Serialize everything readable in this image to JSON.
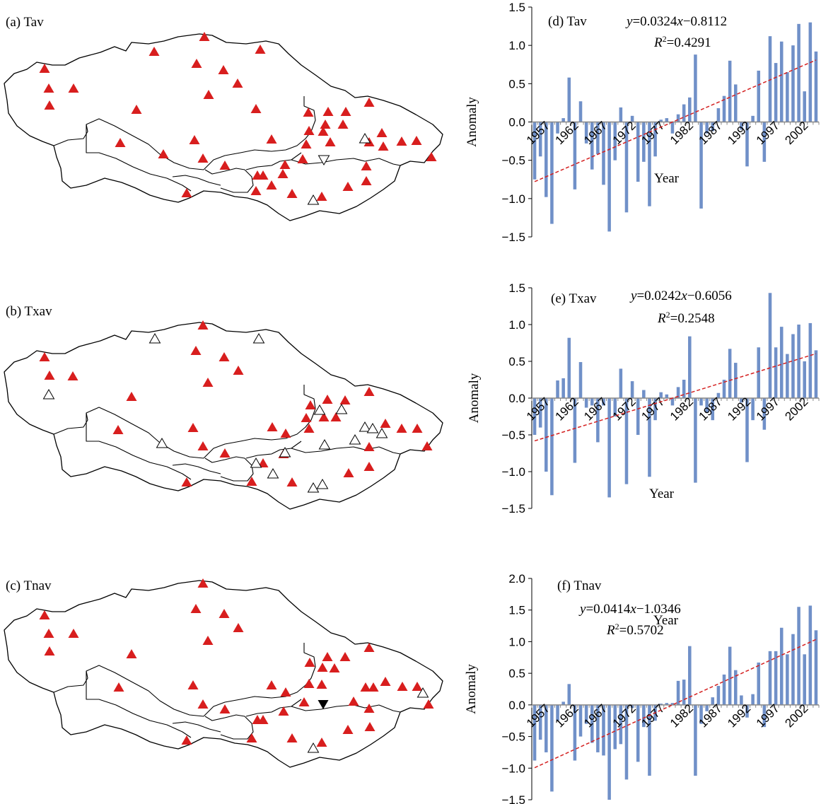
{
  "maps": [
    {
      "label": "(a) Tav",
      "red": [
        [
          63,
          97
        ],
        [
          69,
          125
        ],
        [
          104,
          125
        ],
        [
          70,
          149
        ],
        [
          218,
          73
        ],
        [
          289,
          52
        ],
        [
          368,
          70
        ],
        [
          278,
          90
        ],
        [
          316,
          99
        ],
        [
          295,
          134
        ],
        [
          336,
          118
        ],
        [
          362,
          154
        ],
        [
          193,
          155
        ],
        [
          170,
          202
        ],
        [
          275,
          198
        ],
        [
          231,
          218
        ],
        [
          287,
          224
        ],
        [
          318,
          234
        ],
        [
          384,
          197
        ],
        [
          264,
          273
        ],
        [
          436,
          159
        ],
        [
          464,
          158
        ],
        [
          489,
          158
        ],
        [
          522,
          145
        ],
        [
          460,
          176
        ],
        [
          485,
          176
        ],
        [
          437,
          185
        ],
        [
          457,
          186
        ],
        [
          433,
          204
        ],
        [
          467,
          201
        ],
        [
          428,
          225
        ],
        [
          540,
          188
        ],
        [
          522,
          201
        ],
        [
          568,
          200
        ],
        [
          589,
          199
        ],
        [
          542,
          207
        ],
        [
          610,
          222
        ],
        [
          364,
          248
        ],
        [
          372,
          248
        ],
        [
          403,
          233
        ],
        [
          400,
          246
        ],
        [
          518,
          235
        ],
        [
          518,
          256
        ],
        [
          492,
          264
        ],
        [
          362,
          270
        ],
        [
          455,
          278
        ],
        [
          384,
          262
        ],
        [
          413,
          274
        ]
      ],
      "up_open": [
        [
          516,
          196
        ],
        [
          443,
          283
        ]
      ],
      "down_open": [
        [
          458,
          226
        ]
      ],
      "down_filled": []
    },
    {
      "label": "(b) Txav",
      "red": [
        [
          63,
          505
        ],
        [
          70,
          531
        ],
        [
          103,
          532
        ],
        [
          287,
          460
        ],
        [
          277,
          496
        ],
        [
          317,
          505
        ],
        [
          294,
          541
        ],
        [
          337,
          524
        ],
        [
          186,
          561
        ],
        [
          167,
          608
        ],
        [
          273,
          605
        ],
        [
          287,
          631
        ],
        [
          318,
          641
        ],
        [
          385,
          604
        ],
        [
          264,
          682
        ],
        [
          463,
          565
        ],
        [
          439,
          573
        ],
        [
          488,
          566
        ],
        [
          522,
          554
        ],
        [
          433,
          591
        ],
        [
          437,
          606
        ],
        [
          458,
          590
        ],
        [
          475,
          590
        ],
        [
          404,
          613
        ],
        [
          545,
          599
        ],
        [
          568,
          606
        ],
        [
          590,
          606
        ],
        [
          604,
          631
        ],
        [
          356,
          681
        ],
        [
          372,
          655
        ],
        [
          522,
          632
        ],
        [
          522,
          660
        ],
        [
          493,
          669
        ],
        [
          401,
          642
        ],
        [
          413,
          682
        ]
      ],
      "up_open": [
        [
          219,
          479
        ],
        [
          366,
          479
        ],
        [
          69,
          558
        ],
        [
          229,
          627
        ],
        [
          452,
          580
        ],
        [
          483,
          579
        ],
        [
          516,
          604
        ],
        [
          527,
          606
        ],
        [
          540,
          613
        ],
        [
          459,
          629
        ],
        [
          502,
          622
        ],
        [
          403,
          640
        ],
        [
          362,
          655
        ],
        [
          386,
          670
        ],
        [
          443,
          690
        ],
        [
          456,
          685
        ]
      ],
      "down_open": [],
      "down_filled": []
    },
    {
      "label": "(c) Tnav",
      "red": [
        [
          63,
          870
        ],
        [
          69,
          896
        ],
        [
          104,
          896
        ],
        [
          70,
          921
        ],
        [
          287,
          825
        ],
        [
          277,
          861
        ],
        [
          317,
          868
        ],
        [
          294,
          906
        ],
        [
          337,
          888
        ],
        [
          186,
          925
        ],
        [
          168,
          972
        ],
        [
          273,
          969
        ],
        [
          287,
          996
        ],
        [
          318,
          1003
        ],
        [
          384,
          969
        ],
        [
          264,
          1047
        ],
        [
          463,
          929
        ],
        [
          438,
          937
        ],
        [
          488,
          929
        ],
        [
          522,
          916
        ],
        [
          456,
          944
        ],
        [
          473,
          945
        ],
        [
          437,
          967
        ],
        [
          455,
          968
        ],
        [
          517,
          972
        ],
        [
          528,
          972
        ],
        [
          545,
          964
        ],
        [
          569,
          971
        ],
        [
          590,
          971
        ],
        [
          606,
          996
        ],
        [
          404,
          979
        ],
        [
          401,
          1006
        ],
        [
          430,
          993
        ],
        [
          364,
          1018
        ],
        [
          372,
          1018
        ],
        [
          500,
          992
        ],
        [
          522,
          1002
        ],
        [
          523,
          1028
        ],
        [
          492,
          1032
        ],
        [
          413,
          1044
        ],
        [
          455,
          1050
        ],
        [
          356,
          1044
        ]
      ],
      "up_open": [
        [
          598,
          980
        ],
        [
          443,
          1058
        ]
      ],
      "down_open": [],
      "down_filled": [
        [
          457,
          996
        ]
      ]
    }
  ],
  "chart_data": [
    {
      "type": "bar",
      "label": "(d) Tav",
      "equation": "y=0.0324x−0.8112",
      "r2": "R2=0.4291",
      "xlabel": "Year",
      "ylabel": "Anomaly",
      "ylim": [
        -1.5,
        1.5
      ],
      "yticks": [
        "−1.5",
        "−1.0",
        "−0.5",
        "0.0",
        "0.5",
        "1.0",
        "1.5"
      ],
      "xticks": [
        "1957",
        "1962",
        "1967",
        "1972",
        "1977",
        "1982",
        "1987",
        "1992",
        "1997",
        "2002"
      ],
      "categories": [
        1955,
        1956,
        1957,
        1958,
        1959,
        1960,
        1961,
        1962,
        1963,
        1964,
        1965,
        1966,
        1967,
        1968,
        1969,
        1970,
        1971,
        1972,
        1973,
        1974,
        1975,
        1976,
        1977,
        1978,
        1979,
        1980,
        1981,
        1982,
        1983,
        1984,
        1985,
        1986,
        1987,
        1988,
        1989,
        1990,
        1991,
        1992,
        1993,
        1994,
        1995,
        1996,
        1997,
        1998,
        1999,
        2000,
        2001,
        2002,
        2003,
        2004
      ],
      "values": [
        -0.75,
        -0.45,
        -0.98,
        -1.33,
        -0.15,
        0.05,
        0.58,
        -0.88,
        0.27,
        -0.28,
        -0.62,
        -0.42,
        -0.82,
        -1.43,
        -0.5,
        0.19,
        -1.18,
        0.08,
        -0.78,
        -0.52,
        -1.1,
        -0.45,
        0.03,
        0.05,
        -0.15,
        0.1,
        0.23,
        0.32,
        0.88,
        -1.13,
        -0.15,
        -0.12,
        0.18,
        0.34,
        0.8,
        0.49,
        -0.1,
        -0.58,
        0.08,
        0.67,
        -0.52,
        1.12,
        0.77,
        1.05,
        0.65,
        1.0,
        1.28,
        0.4,
        1.3,
        0.92
      ],
      "trend": {
        "slope": 0.0324,
        "intercept": -0.8112
      }
    },
    {
      "type": "bar",
      "label": "(e) Txav",
      "equation": "y=0.0242x−0.6056",
      "r2": "R2=0.2548",
      "xlabel": "Year",
      "ylabel": "Anomaly",
      "ylim": [
        -1.5,
        1.5
      ],
      "yticks": [
        "−1.5",
        "−1.0",
        "−0.5",
        "0.0",
        "0.5",
        "1.0",
        "1.5"
      ],
      "xticks": [
        "1957",
        "1962",
        "1967",
        "1972",
        "1977",
        "1982",
        "1987",
        "1992",
        "1997",
        "2002"
      ],
      "categories": [
        1955,
        1956,
        1957,
        1958,
        1959,
        1960,
        1961,
        1962,
        1963,
        1964,
        1965,
        1966,
        1967,
        1968,
        1969,
        1970,
        1971,
        1972,
        1973,
        1974,
        1975,
        1976,
        1977,
        1978,
        1979,
        1980,
        1981,
        1982,
        1983,
        1984,
        1985,
        1986,
        1987,
        1988,
        1989,
        1990,
        1991,
        1992,
        1993,
        1994,
        1995,
        1996,
        1997,
        1998,
        1999,
        2000,
        2001,
        2002,
        2003,
        2004
      ],
      "values": [
        -0.5,
        -0.4,
        -1.0,
        -1.32,
        0.24,
        0.27,
        0.82,
        -0.88,
        0.49,
        -0.13,
        -0.1,
        -0.6,
        -0.1,
        -1.35,
        -0.25,
        0.4,
        -1.17,
        0.23,
        -0.5,
        0.11,
        -1.07,
        -0.3,
        0.08,
        0.05,
        -0.1,
        0.15,
        0.25,
        0.84,
        -1.15,
        -0.1,
        -0.2,
        -0.3,
        0.07,
        0.25,
        0.67,
        0.48,
        -0.06,
        -0.87,
        -0.3,
        0.69,
        -0.43,
        1.43,
        0.69,
        0.97,
        0.6,
        0.87,
        1.0,
        0.5,
        1.02,
        0.65
      ],
      "trend": {
        "slope": 0.0242,
        "intercept": -0.6056
      }
    },
    {
      "type": "bar",
      "label": "(f) Tnav",
      "equation": "y=0.0414x−1.0346",
      "r2": "R2=0.5702",
      "xlabel": "Year",
      "ylabel": "Anomaly",
      "ylim": [
        -1.5,
        2.0
      ],
      "yticks": [
        "−1.5",
        "−1.0",
        "−0.5",
        "0.0",
        "0.5",
        "1.0",
        "1.5",
        "2.0"
      ],
      "xticks": [
        "1957",
        "1962",
        "1967",
        "1972",
        "1977",
        "1982",
        "1987",
        "1992",
        "1997",
        "2002"
      ],
      "categories": [
        1955,
        1956,
        1957,
        1958,
        1959,
        1960,
        1961,
        1962,
        1963,
        1964,
        1965,
        1966,
        1967,
        1968,
        1969,
        1970,
        1971,
        1972,
        1973,
        1974,
        1975,
        1976,
        1977,
        1978,
        1979,
        1980,
        1981,
        1982,
        1983,
        1984,
        1985,
        1986,
        1987,
        1988,
        1989,
        1990,
        1991,
        1992,
        1993,
        1994,
        1995,
        1996,
        1997,
        1998,
        1999,
        2000,
        2001,
        2002,
        2003,
        2004
      ],
      "values": [
        -0.88,
        -0.55,
        -0.75,
        -1.37,
        -0.25,
        0.05,
        0.33,
        -0.88,
        -0.5,
        -0.3,
        -0.6,
        -0.75,
        -0.8,
        -1.5,
        -0.7,
        -0.62,
        -1.18,
        -0.05,
        -0.9,
        -0.35,
        -1.12,
        -0.25,
        0.02,
        0.03,
        0.03,
        0.38,
        0.4,
        0.93,
        -1.12,
        -0.3,
        -0.1,
        0.12,
        0.3,
        0.48,
        0.92,
        0.55,
        0.15,
        -0.2,
        0.17,
        0.67,
        -0.35,
        0.85,
        0.85,
        1.22,
        0.8,
        1.12,
        1.55,
        0.8,
        1.57,
        1.18
      ],
      "trend": {
        "slope": 0.0414,
        "intercept": -1.0346
      }
    }
  ],
  "colors": {
    "bar": "#7090c8",
    "trend": "#d42020",
    "marker_red": "#d81e1e"
  }
}
